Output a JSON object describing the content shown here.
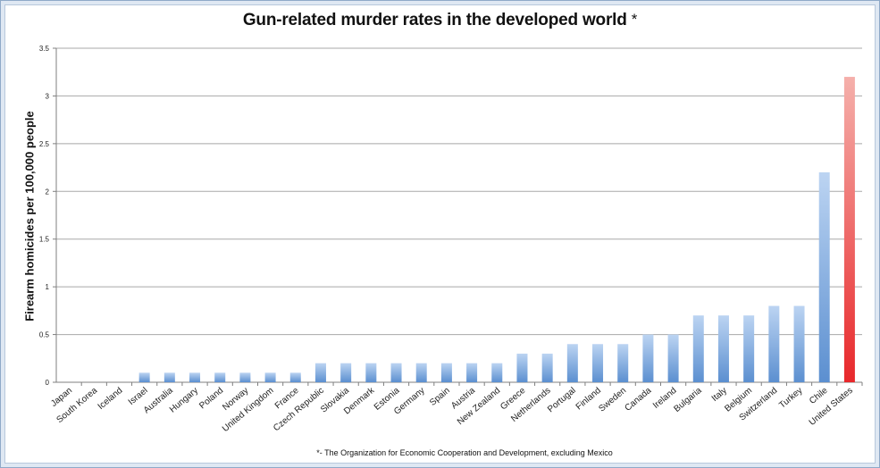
{
  "chart_data": {
    "type": "bar",
    "title": "Gun-related murder rates in the developed world",
    "title_mark": "*",
    "ylabel": "Firearm homicides per 100,000 people",
    "xlabel": "",
    "footnote": "*- The Organization for Economic Cooperation and Development, excluding Mexico",
    "ylim": [
      0,
      3.5
    ],
    "yticks": [
      "0",
      "0.5",
      "1",
      "1.5",
      "2",
      "2.5",
      "3",
      "3.5"
    ],
    "grid": true,
    "legend": "none",
    "categories": [
      "Japan",
      "South Korea",
      "Iceland",
      "Israel",
      "Australia",
      "Hungary",
      "Poland",
      "Norway",
      "United Kingdom",
      "France",
      "Czech Republic",
      "Slovakia",
      "Denmark",
      "Estonia",
      "Germany",
      "Spain",
      "Austria",
      "New Zealand",
      "Greece",
      "Netherlands",
      "Portugal",
      "Finland",
      "Sweden",
      "Canada",
      "Ireland",
      "Bulgaria",
      "Italy",
      "Belgium",
      "Switzerland",
      "Turkey",
      "Chile",
      "United States"
    ],
    "values": [
      0,
      0,
      0,
      0.1,
      0.1,
      0.1,
      0.1,
      0.1,
      0.1,
      0.1,
      0.2,
      0.2,
      0.2,
      0.2,
      0.2,
      0.2,
      0.2,
      0.2,
      0.3,
      0.3,
      0.4,
      0.4,
      0.4,
      0.5,
      0.5,
      0.7,
      0.7,
      0.7,
      0.8,
      0.8,
      2.2,
      3.2
    ],
    "colors": {
      "bar_top": "#bcd4f2",
      "bar_bottom": "#5b8fd0",
      "highlight_top": "#f5b0ab",
      "highlight_bottom": "#e8282b",
      "grid": "#a8a8a8",
      "axis": "#7f7f7f"
    },
    "highlight_category": "United States"
  }
}
